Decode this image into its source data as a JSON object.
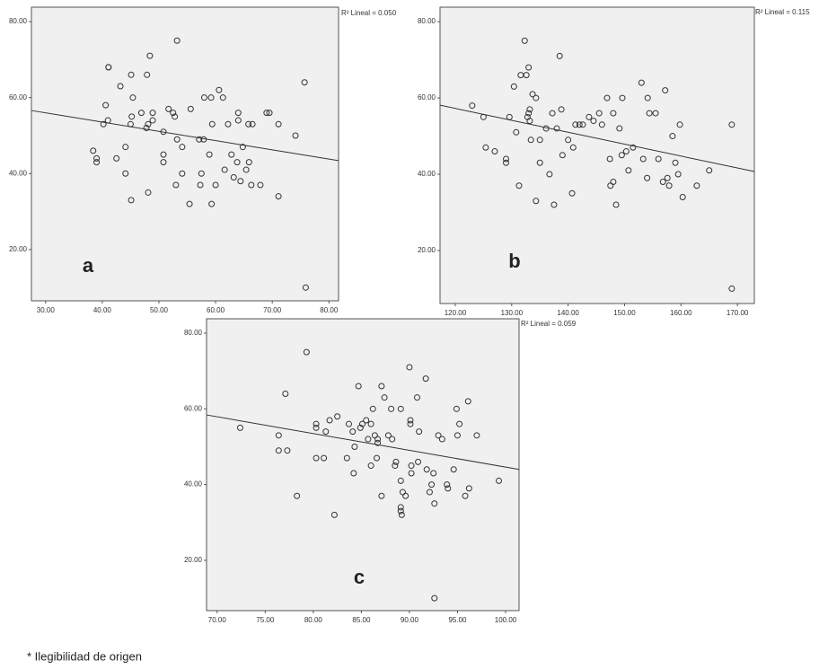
{
  "chart_data": [
    {
      "type": "scatter",
      "panel_label": "a",
      "annotation": "R² Lineal = 0.050",
      "color": "#333333",
      "line_color": "#333333",
      "x": [
        38.4,
        39,
        39,
        41.1,
        41.1,
        43.2,
        45.1,
        48.4,
        53.2,
        47.9,
        40.6,
        45.4,
        41,
        40.2,
        42.5,
        44.1,
        45,
        45.2,
        46.9,
        47.8,
        48.1,
        48.9,
        48.9,
        50.8,
        51.7,
        52.5,
        52.8,
        50.8,
        50.8,
        44.1,
        45.1,
        48.1,
        53.2,
        54.1,
        54.1,
        53,
        55.6,
        55.4,
        57.1,
        57.9,
        57.5,
        57.3,
        58,
        59.2,
        59.4,
        58.9,
        59.3,
        60,
        60.6,
        61.3,
        62.2,
        61.6,
        62.8,
        63.2,
        64,
        64,
        63.8,
        64.4,
        64.8,
        65.4,
        65.9,
        65.8,
        66.5,
        66.3,
        67.9,
        69,
        69.5,
        71.1,
        71.1,
        74.1,
        75.7,
        75.9
      ],
      "values": [
        46,
        44,
        43,
        68,
        68,
        63,
        66,
        71,
        75,
        66,
        58,
        60,
        54,
        53,
        44,
        47,
        53,
        55,
        56,
        52,
        53,
        56,
        54,
        51,
        57,
        56,
        55,
        45,
        43,
        40,
        33,
        35,
        49,
        47,
        40,
        37,
        57,
        32,
        49,
        49,
        40,
        37,
        60,
        60,
        53,
        45,
        32,
        37,
        62,
        60,
        53,
        41,
        45,
        39,
        56,
        54,
        43,
        38,
        47,
        41,
        43,
        53,
        53,
        37,
        37,
        56,
        56,
        53,
        34,
        50,
        64,
        10
      ],
      "fit_line": {
        "x": [
          27.5,
          81.7
        ],
        "y": [
          56.6,
          43.4
        ]
      },
      "xlim": [
        27.5,
        81.7
      ],
      "ylim": [
        6.5,
        83.8
      ],
      "xticks": [
        {
          "value": 30,
          "label": "30.00"
        },
        {
          "value": 40,
          "label": "40.00"
        },
        {
          "value": 50,
          "label": "50.00"
        },
        {
          "value": 60,
          "label": "60.00"
        },
        {
          "value": 70,
          "label": "70.00"
        },
        {
          "value": 80,
          "label": "80.00"
        }
      ],
      "yticks": [
        {
          "value": 20,
          "label": "20.00"
        },
        {
          "value": 40,
          "label": "40.00"
        },
        {
          "value": 60,
          "label": "60.00"
        },
        {
          "value": 80,
          "label": "80.00"
        }
      ]
    },
    {
      "type": "scatter",
      "panel_label": "b",
      "annotation": "R² Lineal = 0.115",
      "color": "#333333",
      "line_color": "#333333",
      "x": [
        123,
        125,
        125.4,
        127,
        129,
        129,
        129.6,
        130.4,
        130.8,
        131.3,
        131.6,
        132.3,
        132.6,
        132.8,
        133,
        133,
        133.2,
        133.2,
        133.4,
        133.7,
        134.3,
        134.3,
        135,
        135,
        136.1,
        136.7,
        137.2,
        137.5,
        138,
        138.5,
        138.8,
        139,
        140,
        140.7,
        140.9,
        141.3,
        142,
        142.6,
        143.7,
        144.5,
        145.5,
        146,
        146.9,
        147.4,
        147.5,
        148,
        148,
        148.5,
        149.1,
        149.5,
        149.6,
        150.3,
        150.7,
        151.5,
        153,
        153.3,
        154,
        154.1,
        154.4,
        155.5,
        156,
        156.8,
        157.2,
        157.6,
        157.9,
        158.5,
        159,
        159.5,
        159.8,
        160.3,
        162.8,
        165,
        169,
        169
      ],
      "values": [
        58,
        55,
        47,
        46,
        44,
        43,
        55,
        63,
        51,
        37,
        66,
        75,
        66,
        55,
        56,
        68,
        57,
        54,
        49,
        61,
        60,
        33,
        49,
        43,
        52,
        40,
        56,
        32,
        52,
        71,
        57,
        45,
        49,
        35,
        47,
        53,
        53,
        53,
        55,
        54,
        56,
        53,
        60,
        44,
        37,
        56,
        38,
        32,
        52,
        45,
        60,
        46,
        41,
        47,
        64,
        44,
        39,
        60,
        56,
        56,
        44,
        38,
        62,
        39,
        37,
        50,
        43,
        40,
        53,
        34,
        37,
        41,
        53,
        10
      ],
      "fit_line": {
        "x": [
          117.3,
          173
        ],
        "y": [
          58.1,
          40.7
        ]
      },
      "xlim": [
        117.3,
        173
      ],
      "ylim": [
        6.1,
        83.8
      ],
      "xticks": [
        {
          "value": 120,
          "label": "120.00"
        },
        {
          "value": 130,
          "label": "130.00"
        },
        {
          "value": 140,
          "label": "140.00"
        },
        {
          "value": 150,
          "label": "150.00"
        },
        {
          "value": 160,
          "label": "160.00"
        },
        {
          "value": 170,
          "label": "170.00"
        }
      ],
      "yticks": [
        {
          "value": 20,
          "label": "20.00"
        },
        {
          "value": 40,
          "label": "40.00"
        },
        {
          "value": 60,
          "label": "60.00"
        },
        {
          "value": 80,
          "label": "80.00"
        }
      ]
    },
    {
      "type": "scatter",
      "panel_label": "c",
      "annotation": "R² Lineal = 0.059",
      "color": "#333333",
      "line_color": "#333333",
      "x": [
        72.4,
        76.4,
        76.4,
        77.1,
        77.3,
        78.3,
        79.3,
        80.3,
        80.3,
        80.3,
        81.1,
        81.3,
        81.7,
        82.2,
        82.5,
        83.5,
        83.7,
        84.1,
        84.2,
        84.3,
        84.7,
        84.9,
        85.1,
        85.5,
        85.7,
        86,
        86,
        86.2,
        86.4,
        86.6,
        86.7,
        86.7,
        87.1,
        87.1,
        87.4,
        87.8,
        88.1,
        88.2,
        88.5,
        88.6,
        89.1,
        89.1,
        89.1,
        89.1,
        89.2,
        89.3,
        89.6,
        90,
        90.1,
        90.1,
        90.2,
        90.2,
        90.8,
        91,
        90.9,
        91.7,
        91.8,
        92.1,
        92.3,
        92.5,
        92.6,
        92.6,
        93,
        93.4,
        93.9,
        94,
        94.6,
        94.9,
        95,
        95.2,
        95.8,
        96.1,
        96.2,
        97,
        99.3
      ],
      "values": [
        55,
        53,
        49,
        64,
        49,
        37,
        75,
        56,
        55,
        47,
        47,
        54,
        57,
        32,
        58,
        47,
        56,
        54,
        43,
        50,
        66,
        55,
        56,
        57,
        52,
        45,
        56,
        60,
        53,
        47,
        52,
        51,
        37,
        66,
        63,
        53,
        60,
        52,
        45,
        46,
        60,
        41,
        34,
        33,
        32,
        38,
        37,
        71,
        57,
        56,
        45,
        43,
        63,
        54,
        46,
        68,
        44,
        38,
        40,
        43,
        35,
        10,
        53,
        52,
        40,
        39,
        44,
        60,
        53,
        56,
        37,
        62,
        39,
        53,
        41
      ],
      "fit_line": {
        "x": [
          68.9,
          101.4
        ],
        "y": [
          58.4,
          44
        ]
      },
      "xlim": [
        68.9,
        101.4
      ],
      "ylim": [
        6.7,
        83.8
      ],
      "xticks": [
        {
          "value": 70,
          "label": "70.00"
        },
        {
          "value": 75,
          "label": "75.00"
        },
        {
          "value": 80,
          "label": "80.00"
        },
        {
          "value": 85,
          "label": "85.00"
        },
        {
          "value": 90,
          "label": "90.00"
        },
        {
          "value": 95,
          "label": "95.00"
        },
        {
          "value": 100,
          "label": "100.00"
        }
      ],
      "yticks": [
        {
          "value": 20,
          "label": "20.00"
        },
        {
          "value": 40,
          "label": "40.00"
        },
        {
          "value": 60,
          "label": "60.00"
        },
        {
          "value": 80,
          "label": "80.00"
        }
      ]
    }
  ],
  "footnote": "* Ilegibilidad de origen"
}
